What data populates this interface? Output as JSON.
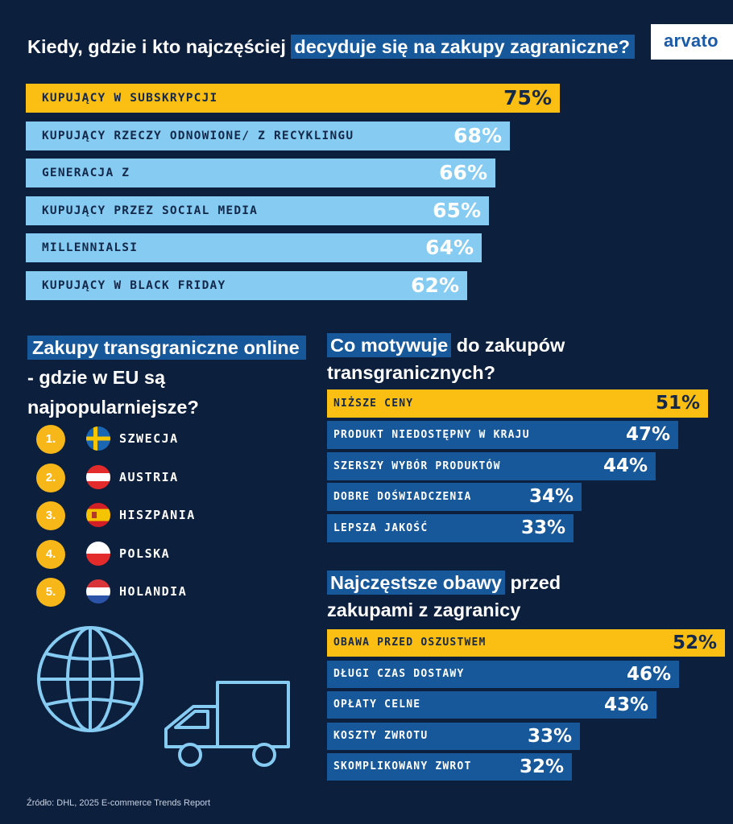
{
  "title": {
    "part1": "Kiedy, gdzie i kto najczęściej",
    "part2": "decyduje się na zakupy zagraniczne?"
  },
  "logo": "arvato",
  "colors": {
    "background": "#0c1f3d",
    "highlight_yellow": "#fbbf14",
    "light_blue": "#86cbf2",
    "dark_blue": "#17589a",
    "title_highlight": "#17589a"
  },
  "chart_data": [
    {
      "type": "bar",
      "orientation": "horizontal",
      "categories": [
        "KUPUJĄCY W SUBSKRYPCJI",
        "KUPUJĄCY RZECZY ODNOWIONE/ Z RECYKLINGU",
        "GENERACJA Z",
        "KUPUJĄCY PRZEZ SOCIAL MEDIA",
        "MILLENNIALSI",
        "KUPUJĄCY W BLACK FRIDAY"
      ],
      "values": [
        75,
        68,
        66,
        65,
        64,
        62
      ],
      "value_labels": [
        "75%",
        "68%",
        "66%",
        "65%",
        "64%",
        "62%"
      ],
      "title": "Kiedy, gdzie i kto najczęściej decyduje się na zakupy zagraniczne?",
      "unit": "%"
    },
    {
      "type": "bar",
      "orientation": "horizontal",
      "categories": [
        "NIŻSZE CENY",
        "PRODUKT NIEDOSTĘPNY W KRAJU",
        "SZERSZY WYBÓR PRODUKTÓW",
        "DOBRE DOŚWIADCZENIA",
        "LEPSZA JAKOŚĆ"
      ],
      "values": [
        51,
        47,
        44,
        34,
        33
      ],
      "value_labels": [
        "51%",
        "47%",
        "44%",
        "34%",
        "33%"
      ],
      "title": "Co motywuje do zakupów transgranicznych?",
      "unit": "%"
    },
    {
      "type": "bar",
      "orientation": "horizontal",
      "categories": [
        "OBAWA PRZED OSZUSTWEM",
        "DŁUGI CZAS DOSTAWY",
        "OPŁATY CELNE",
        "KOSZTY ZWROTU",
        "SKOMPLIKOWANY ZWROT"
      ],
      "values": [
        52,
        46,
        43,
        33,
        32
      ],
      "value_labels": [
        "52%",
        "46%",
        "43%",
        "33%",
        "32%"
      ],
      "title": "Najczęstsze obawy przed zakupami z zagranicy",
      "unit": "%"
    }
  ],
  "eu_section": {
    "title_highlight": "Zakupy transgraniczne online",
    "title_rest1": "- gdzie w EU są",
    "title_rest2": "najpopularniejsze?",
    "countries": [
      {
        "rank": "1.",
        "name": "SZWECJA",
        "flag": "sweden-flag-icon"
      },
      {
        "rank": "2.",
        "name": "AUSTRIA",
        "flag": "austria-flag-icon"
      },
      {
        "rank": "3.",
        "name": "HISZPANIA",
        "flag": "spain-flag-icon"
      },
      {
        "rank": "4.",
        "name": "POLSKA",
        "flag": "poland-flag-icon"
      },
      {
        "rank": "5.",
        "name": "HOLANDIA",
        "flag": "netherlands-flag-icon"
      }
    ]
  },
  "motivation_section": {
    "title_highlight": "Co motywuje",
    "title_rest1": "do zakupów",
    "title_rest2": "transgranicznych?"
  },
  "concerns_section": {
    "title_highlight": "Najczęstsze obawy",
    "title_rest1": "przed",
    "title_rest2": "zakupami z zagranicy"
  },
  "icons": [
    "globe-icon",
    "delivery-truck-icon"
  ],
  "source": "Źródło: DHL, 2025 E-commerce Trends Report"
}
